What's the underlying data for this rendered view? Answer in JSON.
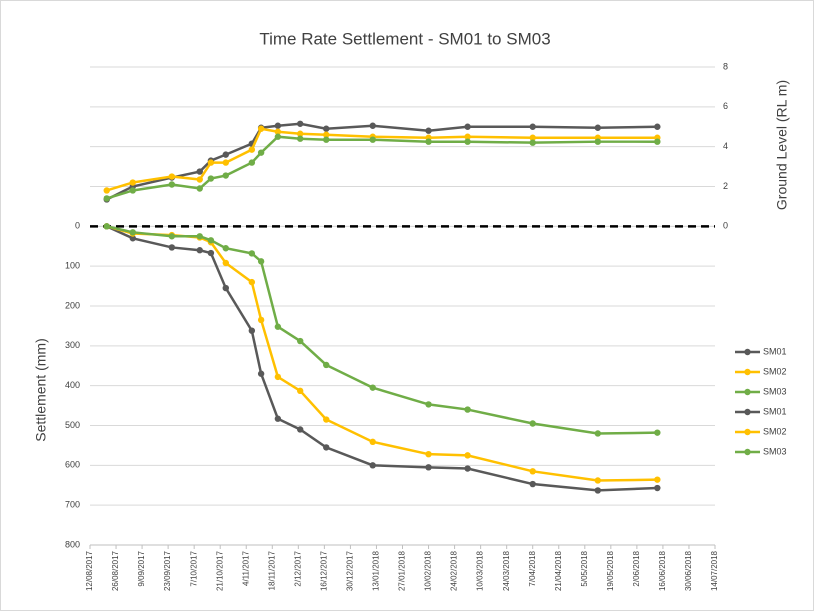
{
  "chart_data": {
    "type": "line",
    "title": "Time Rate Settlement - SM01 to SM03",
    "y_label": "Settlement (mm)",
    "y2_label": "Ground Level (RL m)",
    "x": [
      "2017-08-21",
      "2017-09-04",
      "2017-09-25",
      "2017-10-10",
      "2017-10-16",
      "2017-10-24",
      "2017-11-07",
      "2017-11-12",
      "2017-11-21",
      "2017-12-03",
      "2017-12-17",
      "2018-01-11",
      "2018-02-10",
      "2018-03-03",
      "2018-04-07",
      "2018-05-12",
      "2018-06-13"
    ],
    "xlim": [
      "2017-08-12",
      "2018-07-14"
    ],
    "xticks": [
      {
        "value": "2017-08-12",
        "label": "12/08/2017"
      },
      {
        "value": "2017-08-26",
        "label": "26/08/2017"
      },
      {
        "value": "2017-09-09",
        "label": "9/09/2017"
      },
      {
        "value": "2017-09-23",
        "label": "23/09/2017"
      },
      {
        "value": "2017-10-07",
        "label": "7/10/2017"
      },
      {
        "value": "2017-10-21",
        "label": "21/10/2017"
      },
      {
        "value": "2017-11-04",
        "label": "4/11/2017"
      },
      {
        "value": "2017-11-18",
        "label": "18/11/2017"
      },
      {
        "value": "2017-12-02",
        "label": "2/12/2017"
      },
      {
        "value": "2017-12-16",
        "label": "16/12/2017"
      },
      {
        "value": "2017-12-30",
        "label": "30/12/2017"
      },
      {
        "value": "2018-01-13",
        "label": "13/01/2018"
      },
      {
        "value": "2018-01-27",
        "label": "27/01/2018"
      },
      {
        "value": "2018-02-10",
        "label": "10/02/2018"
      },
      {
        "value": "2018-02-24",
        "label": "24/02/2018"
      },
      {
        "value": "2018-03-10",
        "label": "10/03/2018"
      },
      {
        "value": "2018-03-24",
        "label": "24/03/2018"
      },
      {
        "value": "2018-04-07",
        "label": "7/04/2018"
      },
      {
        "value": "2018-04-21",
        "label": "21/04/2018"
      },
      {
        "value": "2018-05-05",
        "label": "5/05/2018"
      },
      {
        "value": "2018-05-19",
        "label": "19/05/2018"
      },
      {
        "value": "2018-06-02",
        "label": "2/06/2018"
      },
      {
        "value": "2018-06-16",
        "label": "16/06/2018"
      },
      {
        "value": "2018-06-30",
        "label": "30/06/2018"
      },
      {
        "value": "2018-07-14",
        "label": "14/07/2018"
      }
    ],
    "ylim": [
      800,
      -400
    ],
    "yticks": [
      0,
      100,
      200,
      300,
      400,
      500,
      600,
      700,
      800
    ],
    "y2lim": [
      -16,
      8
    ],
    "y2ticks": [
      0,
      2,
      4,
      6,
      8
    ],
    "grid": true,
    "zero_line": true,
    "legend": "right",
    "series": [
      {
        "name": "SM01",
        "color": "#595959",
        "axis": "y",
        "values": [
          0,
          30,
          53,
          60,
          67,
          155,
          262,
          370,
          483,
          510,
          555,
          600,
          605,
          608,
          647,
          663,
          657
        ]
      },
      {
        "name": "SM02",
        "color": "#ffc000",
        "axis": "y",
        "values": [
          0,
          18,
          22,
          28,
          40,
          92,
          140,
          235,
          378,
          413,
          485,
          541,
          572,
          575,
          615,
          638,
          636
        ]
      },
      {
        "name": "SM03",
        "color": "#70ad47",
        "axis": "y",
        "values": [
          0,
          15,
          25,
          25,
          35,
          55,
          68,
          88,
          252,
          288,
          348,
          405,
          447,
          460,
          495,
          520,
          518
        ]
      },
      {
        "name": "SM01",
        "color": "#595959",
        "axis": "y2",
        "values": [
          1.35,
          2.0,
          2.45,
          2.75,
          3.3,
          3.6,
          4.15,
          4.95,
          5.05,
          5.15,
          4.9,
          5.05,
          4.8,
          5.0,
          5.0,
          4.95,
          5.0
        ]
      },
      {
        "name": "SM02",
        "color": "#ffc000",
        "axis": "y2",
        "values": [
          1.8,
          2.2,
          2.5,
          2.35,
          3.2,
          3.2,
          3.85,
          4.9,
          4.75,
          4.65,
          4.6,
          4.5,
          4.45,
          4.5,
          4.45,
          4.45,
          4.45
        ]
      },
      {
        "name": "SM03",
        "color": "#70ad47",
        "axis": "y2",
        "values": [
          1.4,
          1.8,
          2.1,
          1.9,
          2.4,
          2.55,
          3.2,
          3.7,
          4.5,
          4.4,
          4.35,
          4.35,
          4.25,
          4.25,
          4.2,
          4.25,
          4.25
        ]
      }
    ]
  }
}
